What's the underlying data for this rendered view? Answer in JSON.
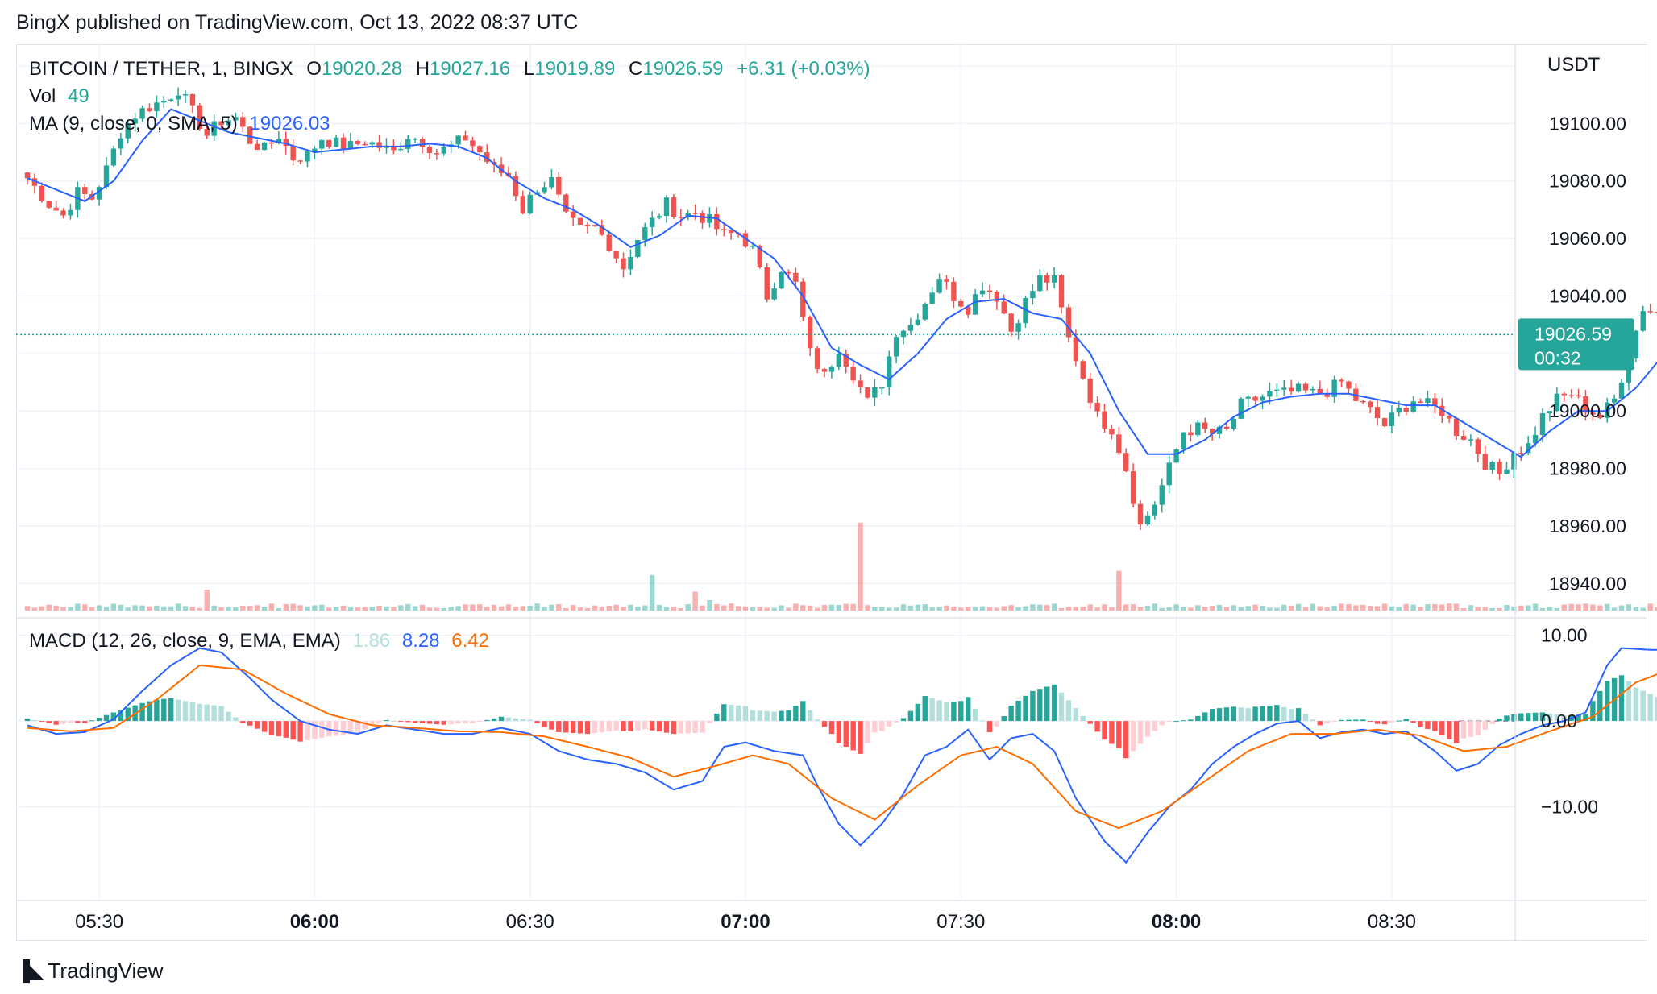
{
  "header": {
    "caption": "BingX published on TradingView.com, Oct 13, 2022 08:37 UTC"
  },
  "legend": {
    "symbol": "BITCOIN / TETHER, 1, BINGX",
    "o_label": "O",
    "o_value": "19020.28",
    "h_label": "H",
    "h_value": "19027.16",
    "l_label": "L",
    "l_value": "19019.89",
    "c_label": "C",
    "c_value": "19026.59",
    "change": "+6.31 (+0.03%)",
    "vol_label": "Vol",
    "vol_value": "49",
    "ma_label": "MA (9, close, 0, SMA, 5)",
    "ma_value": "19026.03",
    "macd_label": "MACD (12, 26, close, 9, EMA, EMA)",
    "macd_hist": "1.86",
    "macd_line": "8.28",
    "macd_signal": "6.42"
  },
  "price_axis": {
    "currency": "USDT",
    "ticks": [
      "19100.00",
      "19080.00",
      "19060.00",
      "19040.00",
      "19000.00",
      "18980.00",
      "18960.00",
      "18940.00"
    ],
    "last_price": "19026.59",
    "countdown": "00:32"
  },
  "macd_axis": {
    "ticks": [
      "10.00",
      "0.00",
      "−10.00"
    ]
  },
  "time_axis": {
    "ticks": [
      "05:30",
      "06:00",
      "06:30",
      "07:00",
      "07:30",
      "08:00",
      "08:30"
    ],
    "bold": [
      "06:00",
      "07:00",
      "08:00"
    ]
  },
  "footer": {
    "brand": "TradingView"
  },
  "colors": {
    "up": "#26a69a",
    "down": "#ef5350",
    "ma": "#2962ff",
    "signal": "#ff6d00",
    "grid": "#f0f3fa"
  },
  "chart_data": {
    "type": "candlestick",
    "time_start": "05:20",
    "interval_minutes": 1,
    "ylim": [
      18930,
      19120
    ],
    "macd_ylim": [
      -20,
      11
    ],
    "price_anchors": [
      [
        0,
        19081
      ],
      [
        3,
        19072
      ],
      [
        5,
        19068
      ],
      [
        7,
        19076
      ],
      [
        9,
        19074
      ],
      [
        11,
        19084
      ],
      [
        13,
        19097
      ],
      [
        15,
        19103
      ],
      [
        17,
        19106
      ],
      [
        19,
        19108
      ],
      [
        21,
        19112
      ],
      [
        23,
        19104
      ],
      [
        25,
        19096
      ],
      [
        27,
        19101
      ],
      [
        29,
        19102
      ],
      [
        31,
        19094
      ],
      [
        33,
        19091
      ],
      [
        35,
        19096
      ],
      [
        37,
        19088
      ],
      [
        39,
        19089
      ],
      [
        41,
        19095
      ],
      [
        43,
        19093
      ],
      [
        45,
        19092
      ],
      [
        47,
        19094
      ],
      [
        49,
        19092
      ],
      [
        51,
        19090
      ],
      [
        53,
        19096
      ],
      [
        55,
        19094
      ],
      [
        57,
        19090
      ],
      [
        59,
        19092
      ],
      [
        61,
        19095
      ],
      [
        63,
        19090
      ],
      [
        65,
        19084
      ],
      [
        67,
        19082
      ],
      [
        69,
        19070
      ],
      [
        71,
        19078
      ],
      [
        73,
        19080
      ],
      [
        75,
        19067
      ],
      [
        77,
        19063
      ],
      [
        79,
        19064
      ],
      [
        81,
        19058
      ],
      [
        83,
        19050
      ],
      [
        85,
        19060
      ],
      [
        87,
        19066
      ],
      [
        89,
        19072
      ],
      [
        91,
        19068
      ],
      [
        93,
        19069
      ],
      [
        95,
        19066
      ],
      [
        97,
        19061
      ],
      [
        99,
        19062
      ],
      [
        101,
        19056
      ],
      [
        103,
        19040
      ],
      [
        105,
        19050
      ],
      [
        107,
        19044
      ],
      [
        109,
        19020
      ],
      [
        111,
        19012
      ],
      [
        113,
        19022
      ],
      [
        115,
        19013
      ],
      [
        117,
        19003
      ],
      [
        119,
        19010
      ],
      [
        121,
        19028
      ],
      [
        123,
        19030
      ],
      [
        125,
        19038
      ],
      [
        127,
        19047
      ],
      [
        129,
        19040
      ],
      [
        131,
        19036
      ],
      [
        133,
        19044
      ],
      [
        135,
        19040
      ],
      [
        137,
        19028
      ],
      [
        139,
        19038
      ],
      [
        141,
        19046
      ],
      [
        143,
        19045
      ],
      [
        145,
        19025
      ],
      [
        147,
        19012
      ],
      [
        149,
        18998
      ],
      [
        151,
        18994
      ],
      [
        153,
        18980
      ],
      [
        155,
        18960
      ],
      [
        157,
        18968
      ],
      [
        159,
        18980
      ],
      [
        161,
        18993
      ],
      [
        163,
        18994
      ],
      [
        165,
        18992
      ],
      [
        167,
        18993
      ],
      [
        169,
        19002
      ],
      [
        171,
        19004
      ],
      [
        173,
        19006
      ],
      [
        175,
        19006
      ],
      [
        177,
        19007
      ],
      [
        179,
        19006
      ],
      [
        181,
        19007
      ],
      [
        183,
        19010
      ],
      [
        185,
        19004
      ],
      [
        187,
        19000
      ],
      [
        189,
        18995
      ],
      [
        191,
        19000
      ],
      [
        193,
        19004
      ],
      [
        195,
        19002
      ],
      [
        197,
        19000
      ],
      [
        199,
        18993
      ],
      [
        201,
        18990
      ],
      [
        203,
        18982
      ],
      [
        205,
        18978
      ],
      [
        207,
        18986
      ],
      [
        209,
        18988
      ],
      [
        211,
        18998
      ],
      [
        213,
        19004
      ],
      [
        215,
        19006
      ],
      [
        217,
        19001
      ],
      [
        219,
        18998
      ],
      [
        221,
        19004
      ],
      [
        223,
        19020
      ],
      [
        225,
        19036
      ],
      [
        227,
        19034
      ],
      [
        229,
        19026
      ],
      [
        230,
        19026.59
      ]
    ],
    "ma_anchors": [
      [
        0,
        19081
      ],
      [
        4,
        19077
      ],
      [
        8,
        19073
      ],
      [
        12,
        19080
      ],
      [
        16,
        19094
      ],
      [
        20,
        19105
      ],
      [
        24,
        19101
      ],
      [
        28,
        19097
      ],
      [
        32,
        19095
      ],
      [
        36,
        19093
      ],
      [
        40,
        19090
      ],
      [
        44,
        19091
      ],
      [
        48,
        19092
      ],
      [
        52,
        19092
      ],
      [
        56,
        19093
      ],
      [
        60,
        19092
      ],
      [
        64,
        19088
      ],
      [
        68,
        19080
      ],
      [
        72,
        19074
      ],
      [
        76,
        19070
      ],
      [
        80,
        19064
      ],
      [
        84,
        19057
      ],
      [
        88,
        19061
      ],
      [
        92,
        19068
      ],
      [
        96,
        19067
      ],
      [
        100,
        19060
      ],
      [
        104,
        19053
      ],
      [
        108,
        19040
      ],
      [
        112,
        19022
      ],
      [
        116,
        19016
      ],
      [
        120,
        19011
      ],
      [
        124,
        19020
      ],
      [
        128,
        19032
      ],
      [
        132,
        19038
      ],
      [
        136,
        19039
      ],
      [
        140,
        19034
      ],
      [
        144,
        19032
      ],
      [
        148,
        19020
      ],
      [
        152,
        19000
      ],
      [
        156,
        18985
      ],
      [
        160,
        18985
      ],
      [
        164,
        18990
      ],
      [
        168,
        18998
      ],
      [
        172,
        19003
      ],
      [
        176,
        19005
      ],
      [
        180,
        19006
      ],
      [
        184,
        19006
      ],
      [
        188,
        19004
      ],
      [
        192,
        19002
      ],
      [
        196,
        19002
      ],
      [
        200,
        18996
      ],
      [
        204,
        18990
      ],
      [
        208,
        18984
      ],
      [
        212,
        18993
      ],
      [
        216,
        19000
      ],
      [
        220,
        19000
      ],
      [
        224,
        19008
      ],
      [
        228,
        19020
      ],
      [
        230,
        19026.03
      ]
    ],
    "volume_spikes": [
      [
        25,
        1.0
      ],
      [
        87,
        1.7
      ],
      [
        93,
        0.9
      ],
      [
        95,
        0.5
      ],
      [
        116,
        4.2
      ],
      [
        152,
        1.9
      ]
    ],
    "macd_anchors": [
      [
        0,
        -0.5
      ],
      [
        4,
        -1.5
      ],
      [
        8,
        -1.3
      ],
      [
        12,
        0.2
      ],
      [
        16,
        3.5
      ],
      [
        20,
        6.5
      ],
      [
        24,
        8.5
      ],
      [
        27,
        8.0
      ],
      [
        31,
        5.0
      ],
      [
        34,
        2.5
      ],
      [
        38,
        0.0
      ],
      [
        42,
        -1.0
      ],
      [
        46,
        -1.5
      ],
      [
        50,
        -0.5
      ],
      [
        54,
        -1.0
      ],
      [
        58,
        -1.5
      ],
      [
        62,
        -1.5
      ],
      [
        66,
        -0.8
      ],
      [
        70,
        -1.5
      ],
      [
        74,
        -3.5
      ],
      [
        78,
        -4.5
      ],
      [
        82,
        -5.0
      ],
      [
        86,
        -6.0
      ],
      [
        90,
        -8.0
      ],
      [
        94,
        -7.0
      ],
      [
        97,
        -3.0
      ],
      [
        100,
        -2.5
      ],
      [
        104,
        -3.5
      ],
      [
        108,
        -4.0
      ],
      [
        110,
        -7.5
      ],
      [
        113,
        -12.0
      ],
      [
        116,
        -14.5
      ],
      [
        119,
        -12.0
      ],
      [
        122,
        -8.5
      ],
      [
        125,
        -4.0
      ],
      [
        128,
        -3.0
      ],
      [
        131,
        -1.0
      ],
      [
        134,
        -4.5
      ],
      [
        137,
        -2.0
      ],
      [
        140,
        -1.5
      ],
      [
        143,
        -3.5
      ],
      [
        146,
        -9.0
      ],
      [
        150,
        -14.0
      ],
      [
        153,
        -16.5
      ],
      [
        156,
        -13.0
      ],
      [
        159,
        -10.0
      ],
      [
        162,
        -8.0
      ],
      [
        165,
        -5.0
      ],
      [
        168,
        -3.0
      ],
      [
        171,
        -1.5
      ],
      [
        174,
        -0.3
      ],
      [
        177,
        0.0
      ],
      [
        180,
        -2.0
      ],
      [
        183,
        -1.3
      ],
      [
        186,
        -1.0
      ],
      [
        189,
        -1.5
      ],
      [
        192,
        -1.2
      ],
      [
        196,
        -3.5
      ],
      [
        199,
        -5.8
      ],
      [
        202,
        -5.0
      ],
      [
        205,
        -2.8
      ],
      [
        208,
        -1.5
      ],
      [
        211,
        -0.5
      ],
      [
        214,
        0.0
      ],
      [
        217,
        1.0
      ],
      [
        220,
        6.5
      ],
      [
        222,
        8.5
      ],
      [
        226,
        8.3
      ],
      [
        230,
        8.28
      ]
    ],
    "signal_anchors": [
      [
        0,
        -0.8
      ],
      [
        6,
        -1.2
      ],
      [
        12,
        -0.8
      ],
      [
        18,
        2.5
      ],
      [
        24,
        6.5
      ],
      [
        30,
        6.0
      ],
      [
        36,
        3.2
      ],
      [
        42,
        0.8
      ],
      [
        48,
        -0.5
      ],
      [
        54,
        -0.8
      ],
      [
        60,
        -1.2
      ],
      [
        66,
        -1.3
      ],
      [
        72,
        -1.8
      ],
      [
        78,
        -3.0
      ],
      [
        84,
        -4.3
      ],
      [
        90,
        -6.5
      ],
      [
        96,
        -5.2
      ],
      [
        101,
        -4.0
      ],
      [
        106,
        -5.0
      ],
      [
        112,
        -9.0
      ],
      [
        118,
        -11.5
      ],
      [
        124,
        -7.5
      ],
      [
        130,
        -4.0
      ],
      [
        135,
        -3.0
      ],
      [
        140,
        -5.0
      ],
      [
        146,
        -10.5
      ],
      [
        152,
        -12.5
      ],
      [
        158,
        -10.5
      ],
      [
        164,
        -7.0
      ],
      [
        170,
        -3.5
      ],
      [
        176,
        -1.5
      ],
      [
        182,
        -1.5
      ],
      [
        188,
        -1.0
      ],
      [
        194,
        -1.7
      ],
      [
        200,
        -3.5
      ],
      [
        206,
        -3.0
      ],
      [
        212,
        -1.2
      ],
      [
        218,
        0.5
      ],
      [
        224,
        4.5
      ],
      [
        230,
        6.42
      ]
    ]
  }
}
